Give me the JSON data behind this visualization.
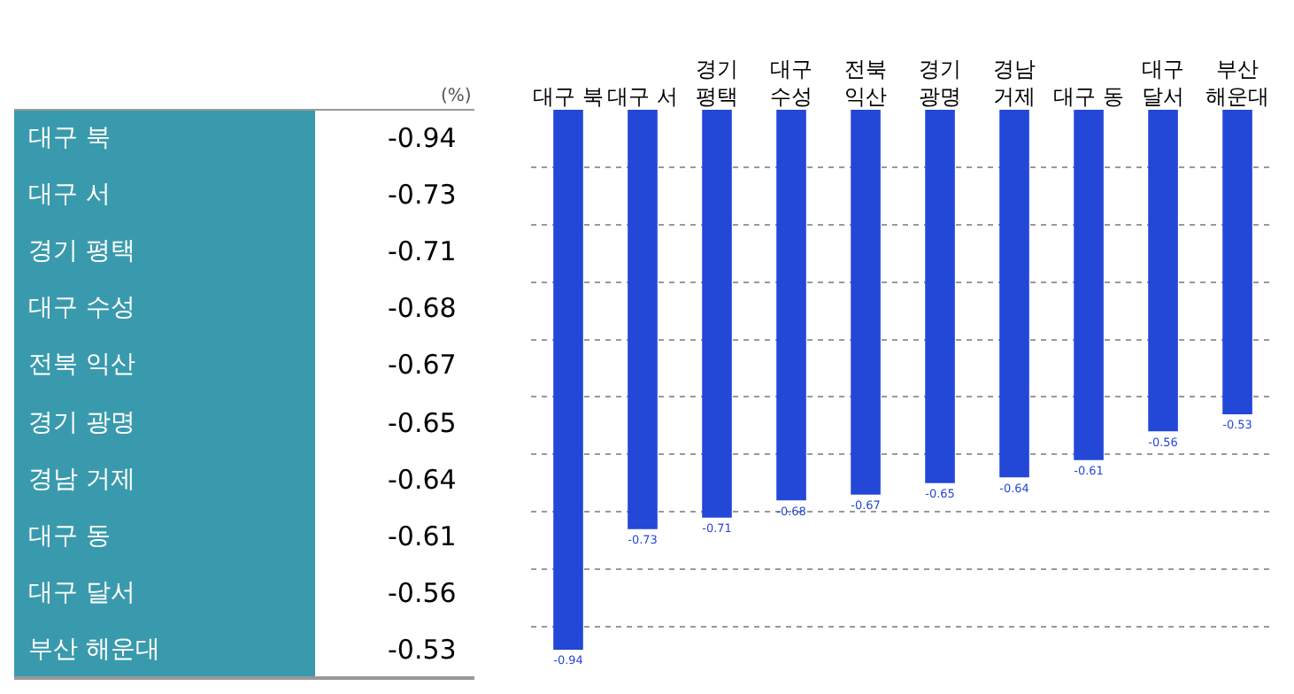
{
  "chart_data": [
    {
      "type": "other",
      "categories": [
        "대구 북",
        "대구 서",
        "경기 평택",
        "대구 수성",
        "전북 익산",
        "경기 광명",
        "경남 거제",
        "대구 동",
        "대구 달서",
        "부산 해운대"
      ],
      "values": [
        -0.94,
        -0.73,
        -0.71,
        -0.68,
        -0.67,
        -0.65,
        -0.64,
        -0.61,
        -0.56,
        -0.53
      ],
      "value_labels": [
        "-0.94",
        "-0.73",
        "-0.71",
        "-0.68",
        "-0.67",
        "-0.65",
        "-0.64",
        "-0.61",
        "-0.56",
        "-0.53"
      ],
      "annotations": [
        "(%)"
      ]
    },
    {
      "type": "bar",
      "categories": [
        "대구 북",
        "대구 서",
        "경기 평택",
        "대구 수성",
        "전북 익산",
        "경기 광명",
        "경남 거제",
        "대구 동",
        "대구 달서",
        "부산 해운대"
      ],
      "values": [
        -0.94,
        -0.73,
        -0.71,
        -0.68,
        -0.67,
        -0.65,
        -0.64,
        -0.61,
        -0.56,
        -0.53
      ],
      "color": "#2347d6",
      "yticks": [
        {
          "value": -0.9,
          "label": null
        },
        {
          "value": -0.8,
          "label": null
        },
        {
          "value": -0.7,
          "label": null
        },
        {
          "value": -0.6,
          "label": null
        },
        {
          "value": -0.5,
          "label": null
        },
        {
          "value": -0.4,
          "label": null
        },
        {
          "value": -0.3,
          "label": null
        },
        {
          "value": -0.2,
          "label": null
        },
        {
          "value": -0.1,
          "label": null
        }
      ],
      "grid": "y",
      "tick_labels": "x",
      "data_labels": true
    }
  ]
}
